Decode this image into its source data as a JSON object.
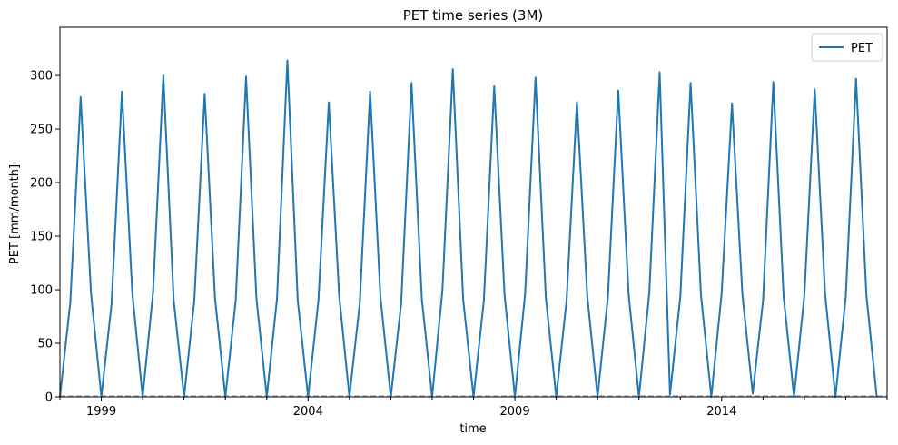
{
  "chart_data": {
    "type": "line",
    "title": "PET time series (3M)",
    "xlabel": "time",
    "ylabel": "PET [mm/month]",
    "xlim": [
      1998.0,
      2018.0
    ],
    "ylim": [
      0,
      345
    ],
    "x_tick_values": [
      1999,
      2004,
      2009,
      2014
    ],
    "x_tick_labels": [
      "1999",
      "2004",
      "2009",
      "2014"
    ],
    "y_ticks": [
      0,
      50,
      100,
      150,
      200,
      250,
      300
    ],
    "grid": false,
    "legend": {
      "position": "top-right",
      "entries": [
        "PET"
      ]
    },
    "reference_line": {
      "y": 0,
      "style": "dashed",
      "color": "#aaaaaa"
    },
    "series": [
      {
        "name": "PET",
        "color": "#1f77b4",
        "points": [
          [
            1998.0,
            0
          ],
          [
            1998.25,
            88
          ],
          [
            1998.5,
            280
          ],
          [
            1998.75,
            97
          ],
          [
            1999.0,
            0
          ],
          [
            1999.25,
            87
          ],
          [
            1999.5,
            285
          ],
          [
            1999.75,
            97
          ],
          [
            2000.0,
            0
          ],
          [
            2000.25,
            97
          ],
          [
            2000.5,
            300
          ],
          [
            2000.75,
            90
          ],
          [
            2001.0,
            0
          ],
          [
            2001.25,
            90
          ],
          [
            2001.5,
            283
          ],
          [
            2001.75,
            92
          ],
          [
            2002.0,
            0
          ],
          [
            2002.25,
            90
          ],
          [
            2002.5,
            299
          ],
          [
            2002.75,
            92
          ],
          [
            2003.0,
            0
          ],
          [
            2003.25,
            92
          ],
          [
            2003.5,
            314
          ],
          [
            2003.75,
            90
          ],
          [
            2004.0,
            0
          ],
          [
            2004.25,
            90
          ],
          [
            2004.5,
            275
          ],
          [
            2004.75,
            95
          ],
          [
            2005.0,
            0
          ],
          [
            2005.25,
            87
          ],
          [
            2005.5,
            285
          ],
          [
            2005.75,
            93
          ],
          [
            2006.0,
            0
          ],
          [
            2006.25,
            87
          ],
          [
            2006.5,
            293
          ],
          [
            2006.75,
            91
          ],
          [
            2007.0,
            0
          ],
          [
            2007.25,
            100
          ],
          [
            2007.5,
            306
          ],
          [
            2007.75,
            91
          ],
          [
            2008.0,
            0
          ],
          [
            2008.25,
            90
          ],
          [
            2008.5,
            290
          ],
          [
            2008.75,
            95
          ],
          [
            2009.0,
            0
          ],
          [
            2009.25,
            97
          ],
          [
            2009.5,
            298
          ],
          [
            2009.75,
            92
          ],
          [
            2010.0,
            0
          ],
          [
            2010.25,
            90
          ],
          [
            2010.5,
            275
          ],
          [
            2010.75,
            94
          ],
          [
            2011.0,
            0
          ],
          [
            2011.25,
            93
          ],
          [
            2011.5,
            286
          ],
          [
            2011.75,
            96
          ],
          [
            2012.0,
            0
          ],
          [
            2012.25,
            97
          ],
          [
            2012.5,
            303
          ],
          [
            2012.75,
            2
          ],
          [
            2013.0,
            94
          ],
          [
            2013.25,
            293
          ],
          [
            2013.5,
            95
          ],
          [
            2013.75,
            0
          ],
          [
            2014.0,
            97
          ],
          [
            2014.25,
            274
          ],
          [
            2014.5,
            96
          ],
          [
            2014.75,
            3
          ],
          [
            2015.0,
            90
          ],
          [
            2015.25,
            294
          ],
          [
            2015.5,
            93
          ],
          [
            2015.75,
            0
          ],
          [
            2016.0,
            95
          ],
          [
            2016.25,
            287
          ],
          [
            2016.5,
            96
          ],
          [
            2016.75,
            0
          ],
          [
            2017.0,
            93
          ],
          [
            2017.25,
            297
          ],
          [
            2017.5,
            95
          ],
          [
            2017.75,
            0
          ]
        ]
      }
    ]
  }
}
